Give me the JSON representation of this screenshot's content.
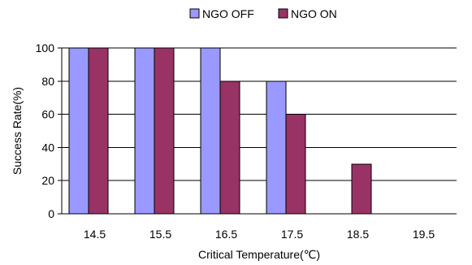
{
  "chart_data": {
    "type": "bar",
    "title": "",
    "xlabel": "Critical Temperature(℃)",
    "ylabel": "Success Rate(%)",
    "categories": [
      "14.5",
      "15.5",
      "16.5",
      "17.5",
      "18.5",
      "19.5"
    ],
    "series": [
      {
        "name": "NGO OFF",
        "values": [
          100,
          100,
          100,
          80,
          0,
          0
        ],
        "color": "#9999ff"
      },
      {
        "name": "NGO ON",
        "values": [
          100,
          100,
          80,
          60,
          30,
          0
        ],
        "color": "#993366"
      }
    ],
    "ylim": [
      0,
      100
    ],
    "yticks": [
      "0",
      "20",
      "40",
      "60",
      "80",
      "100"
    ],
    "grid": "horizontal",
    "legend_position": "top-center"
  }
}
